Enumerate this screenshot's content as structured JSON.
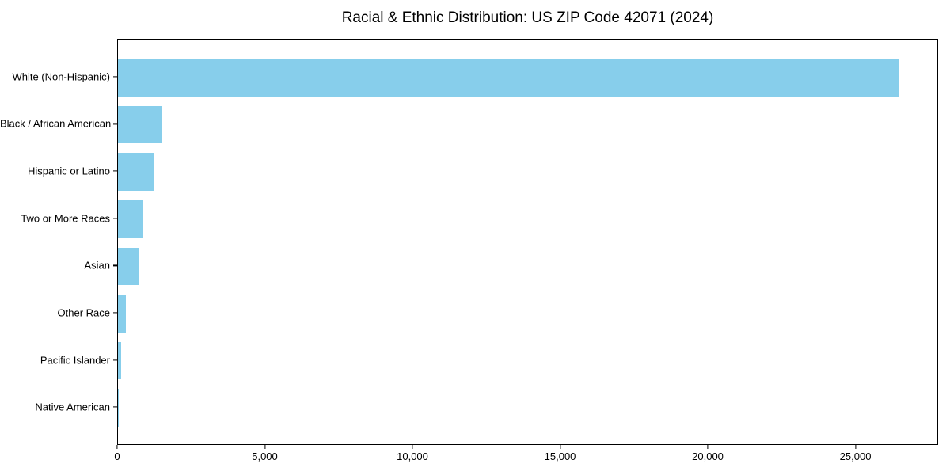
{
  "figure": {
    "title": "Racial & Ethnic Distribution: US ZIP Code 42071 (2024)"
  },
  "chart_data": {
    "type": "bar",
    "orientation": "horizontal",
    "title": "Racial & Ethnic Distribution: US ZIP Code 42071 (2024)",
    "categories": [
      "White (Non-Hispanic)",
      "Black / African American",
      "Hispanic or Latino",
      "Two or More Races",
      "Asian",
      "Other Race",
      "Pacific Islander",
      "Native American"
    ],
    "values": [
      26450,
      1500,
      1200,
      840,
      730,
      270,
      110,
      30
    ],
    "xlabel": "",
    "ylabel": "",
    "xlim": [
      0,
      27800
    ],
    "x_ticks": [
      0,
      5000,
      10000,
      15000,
      20000,
      25000
    ],
    "x_tick_labels": [
      "0",
      "5,000",
      "10,000",
      "15,000",
      "20,000",
      "25,000"
    ],
    "bar_color": "#87CEEB",
    "axis_color": "#000000",
    "background_color": "#FFFFFF",
    "grid": false,
    "legend_position": "none"
  }
}
